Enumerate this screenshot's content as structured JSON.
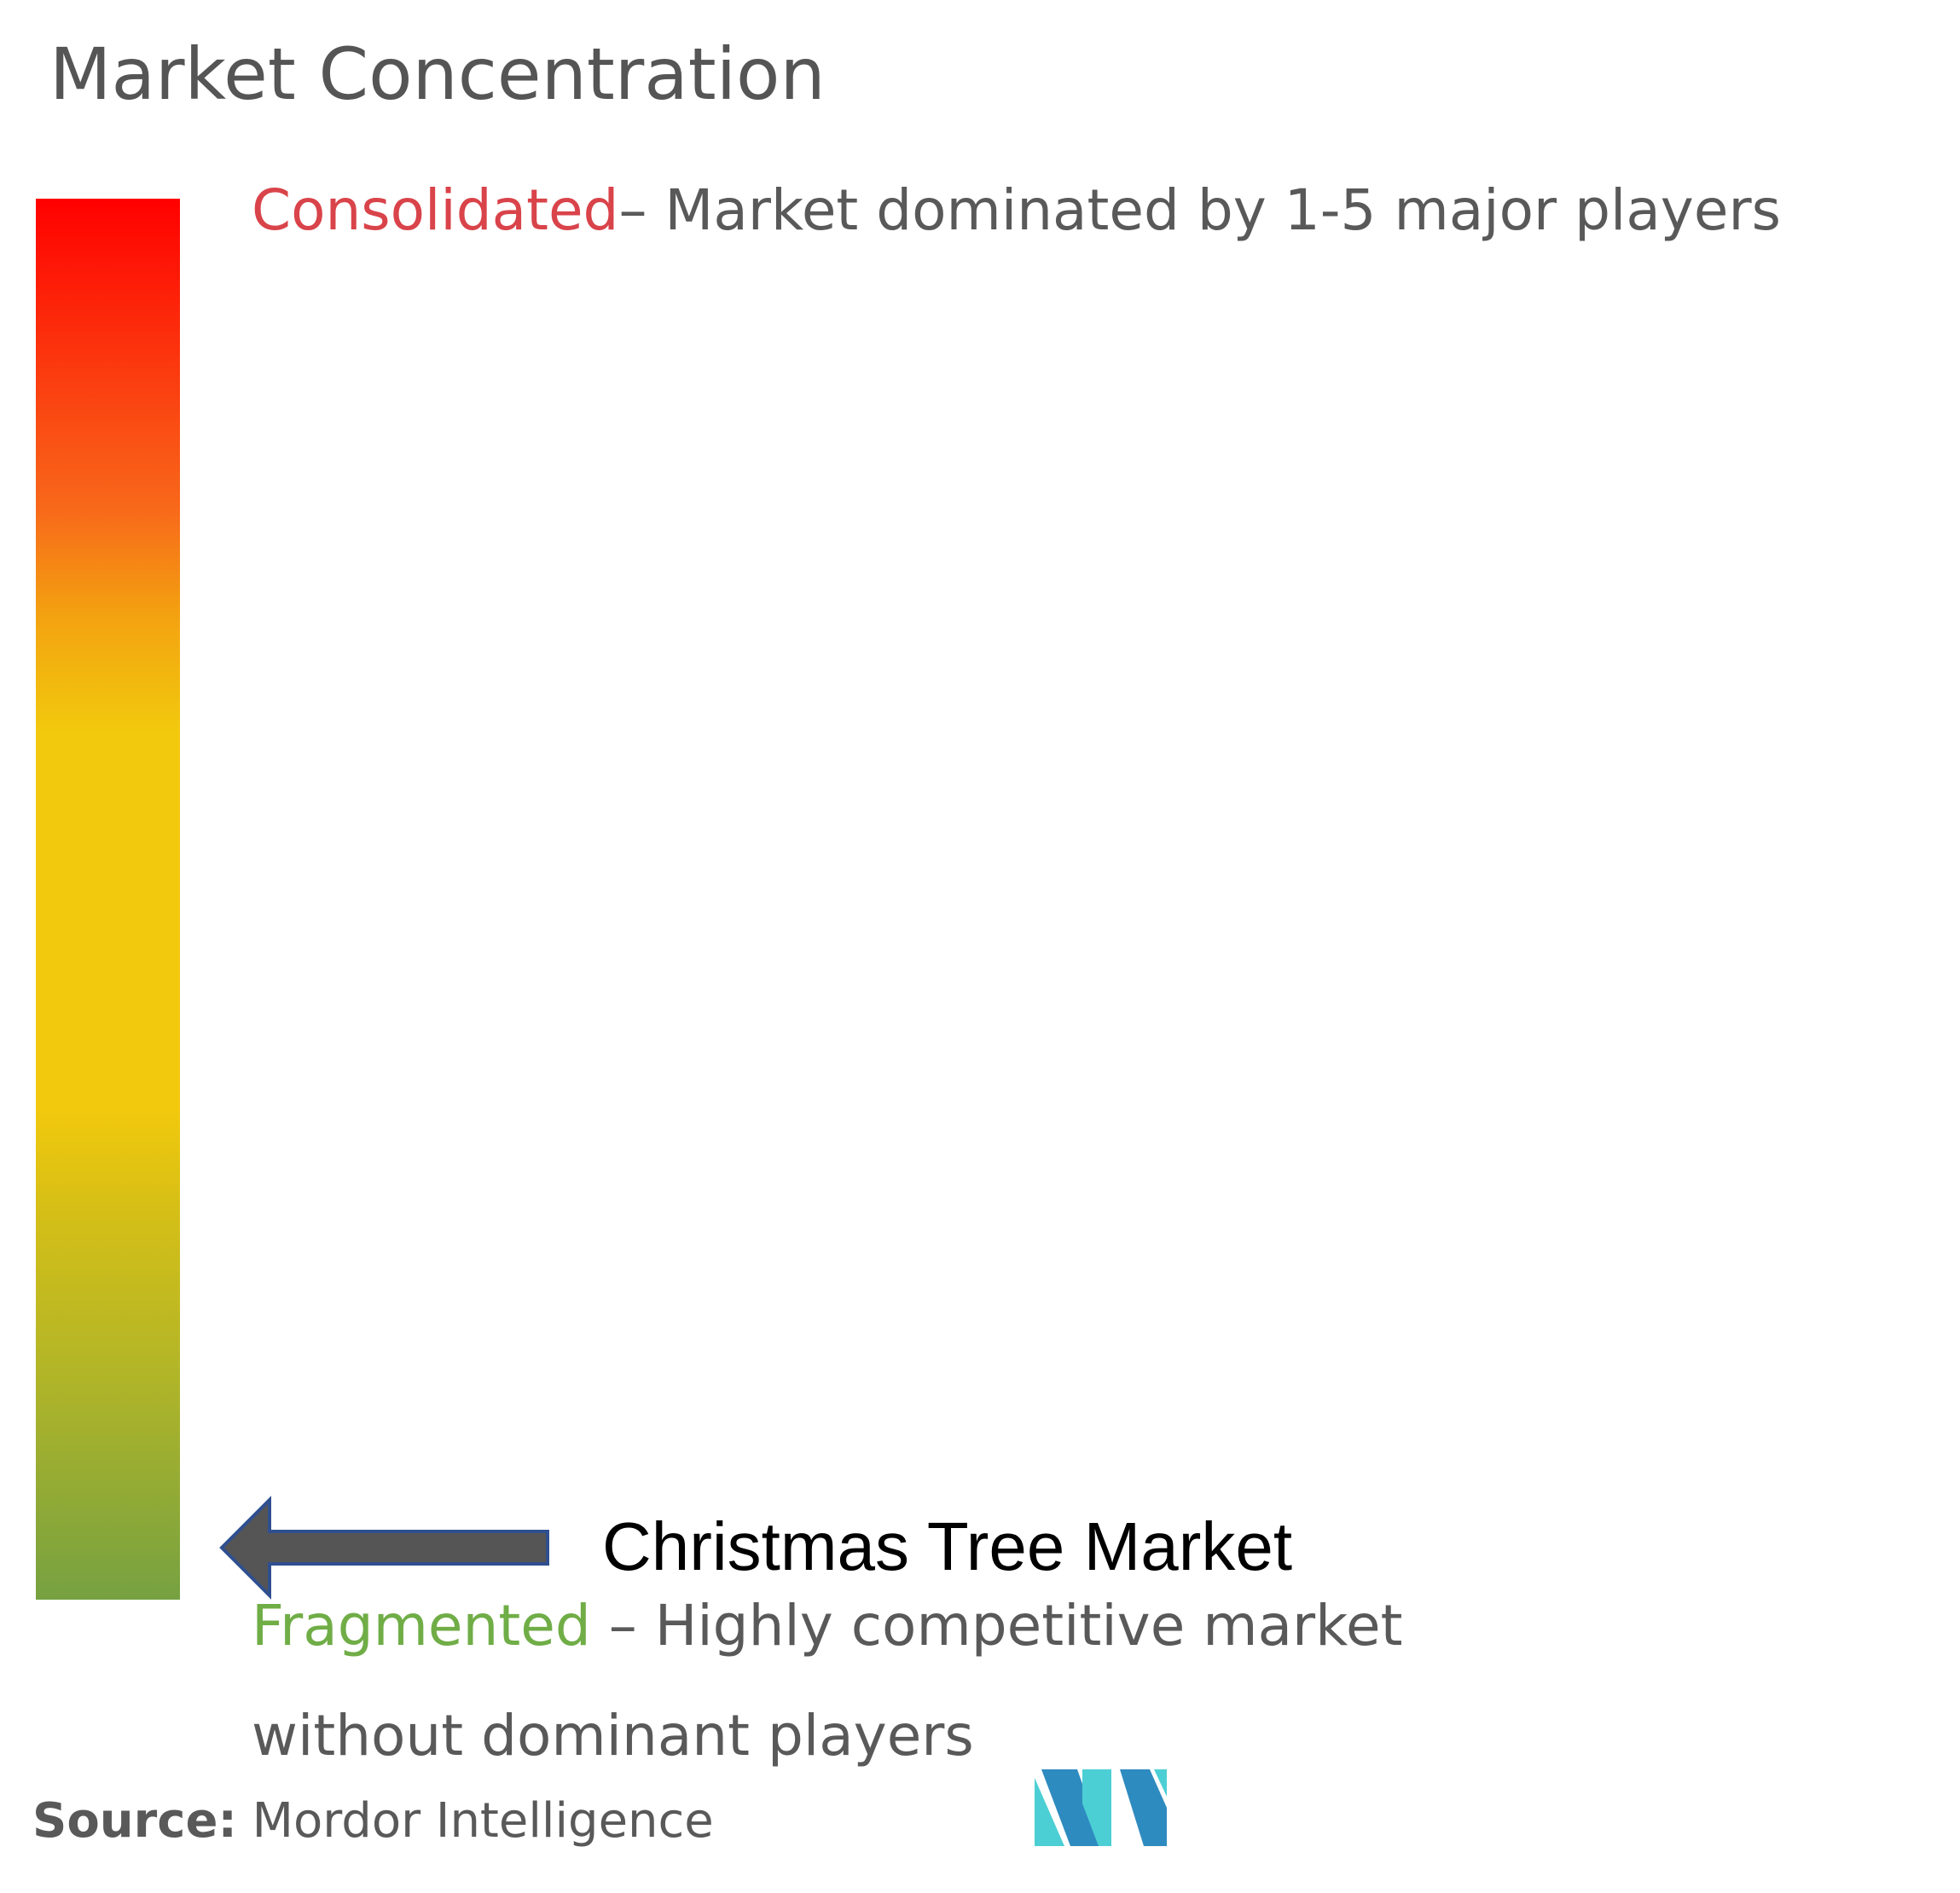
{
  "title": "Market Concentration",
  "chart_data": {
    "type": "gradient-scale",
    "scale_top": {
      "label": "Consolidated",
      "description": "– Market dominated by 1-5 major players"
    },
    "scale_bottom": {
      "label": "Fragmented",
      "description_line1": " – Highly competitive market",
      "description_line2": "without dominant players"
    },
    "marker": {
      "label": "Christmas Tree Market",
      "position": "fragmented"
    }
  },
  "source": {
    "key": "Source:",
    "value": "Mordor Intelligence"
  },
  "colors": {
    "consolidated": "#d9434a",
    "fragmented": "#70ad47",
    "gradient_top": "#ff0000",
    "gradient_bottom": "#76a141",
    "arrow_fill": "#555555",
    "arrow_stroke": "#2f4f8f",
    "logo_dark": "#2e8bc0",
    "logo_light": "#4ccfd4"
  },
  "icons": {
    "arrow": "left-arrow-icon",
    "logo": "mordor-intelligence-logo"
  }
}
